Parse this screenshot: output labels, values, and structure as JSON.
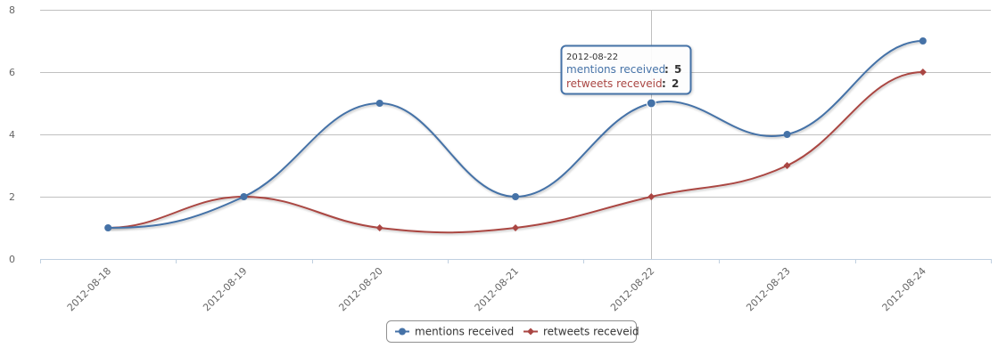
{
  "chart_data": {
    "type": "line",
    "categories": [
      "2012-08-18",
      "2012-08-19",
      "2012-08-20",
      "2012-08-21",
      "2012-08-22",
      "2012-08-23",
      "2012-08-24"
    ],
    "series": [
      {
        "name": "mentions received",
        "values": [
          1,
          2,
          5,
          2,
          5,
          4,
          7
        ],
        "color": "#4572A7",
        "marker": "circle"
      },
      {
        "name": "retweets receveid",
        "values": [
          1,
          2,
          1,
          1,
          2,
          3,
          6
        ],
        "color": "#AA4643",
        "marker": "diamond"
      }
    ],
    "yticks": [
      0,
      2,
      4,
      6,
      8
    ],
    "ylim": [
      0,
      8
    ],
    "grid": true,
    "legend_position": "bottom-center",
    "tooltip": {
      "category": "2012-08-22",
      "rows": [
        {
          "name": "mentions received",
          "value": "5"
        },
        {
          "name": "retweets receveid",
          "value": "2"
        }
      ]
    }
  }
}
